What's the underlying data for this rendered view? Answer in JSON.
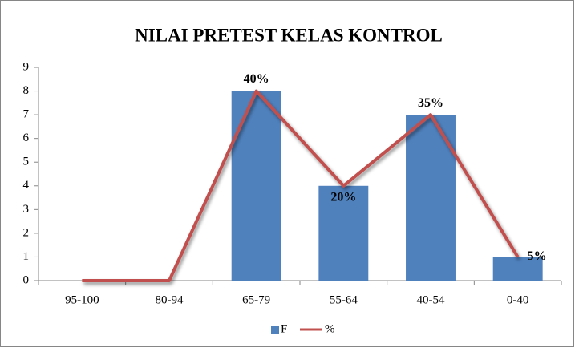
{
  "chart_data": {
    "type": "bar",
    "title": "NILAI PRETEST KELAS KONTROL",
    "categories": [
      "95-100",
      "80-94",
      "65-79",
      "55-64",
      "40-54",
      "0-40"
    ],
    "series": [
      {
        "name": "F",
        "type": "bar",
        "color": "#4f81bd",
        "values": [
          0,
          0,
          8,
          4,
          7,
          1
        ]
      },
      {
        "name": "%",
        "type": "line",
        "axis": "y2",
        "color": "#c0504d",
        "values": [
          0,
          0,
          40,
          20,
          35,
          5
        ],
        "value_labels": [
          null,
          null,
          "40%",
          "20%",
          "35%",
          "5%"
        ]
      }
    ],
    "ylim": [
      0,
      9
    ],
    "yticks": [
      0,
      1,
      2,
      3,
      4,
      5,
      6,
      7,
      8,
      9
    ],
    "y2lim": [
      0,
      45
    ],
    "legend": "bottom"
  }
}
